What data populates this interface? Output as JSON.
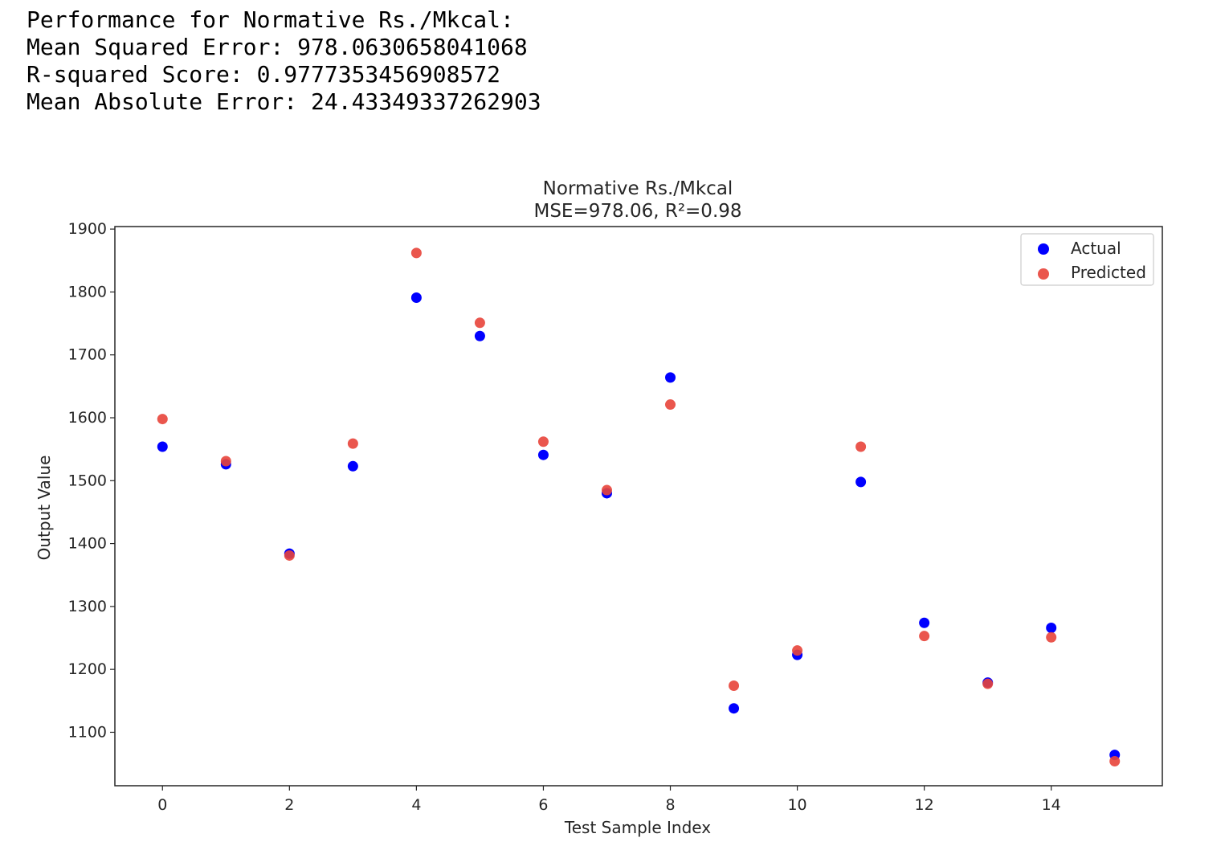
{
  "output": {
    "lines": [
      "Performance for Normative Rs./Mkcal:",
      "Mean Squared Error: 978.0630658041068",
      "R-squared Score: 0.9777353456908572",
      "Mean Absolute Error: 24.43349337262903"
    ]
  },
  "chart_data": {
    "type": "scatter",
    "title": "Normative Rs./Mkcal",
    "subtitle": "MSE=978.06, R²=0.98",
    "xlabel": "Test Sample Index",
    "ylabel": "Output Value",
    "xlim": [
      -0.75,
      15.75
    ],
    "ylim": [
      1015,
      1904
    ],
    "xticks": [
      0,
      2,
      4,
      6,
      8,
      10,
      12,
      14
    ],
    "yticks": [
      1100,
      1200,
      1300,
      1400,
      1500,
      1600,
      1700,
      1800,
      1900
    ],
    "grid": false,
    "legend_position": "top-right",
    "x": [
      0,
      1,
      2,
      3,
      4,
      5,
      6,
      7,
      8,
      9,
      10,
      11,
      12,
      13,
      14,
      15
    ],
    "series": [
      {
        "name": "Actual",
        "color": "#0000ff",
        "values": [
          1554,
          1526,
          1384,
          1523,
          1791,
          1730,
          1541,
          1480,
          1664,
          1138,
          1223,
          1498,
          1274,
          1179,
          1266,
          1064
        ]
      },
      {
        "name": "Predicted",
        "color": "#e8443a",
        "values": [
          1598,
          1531,
          1381,
          1559,
          1862,
          1751,
          1562,
          1485,
          1621,
          1174,
          1230,
          1554,
          1253,
          1177,
          1251,
          1054
        ]
      }
    ]
  }
}
